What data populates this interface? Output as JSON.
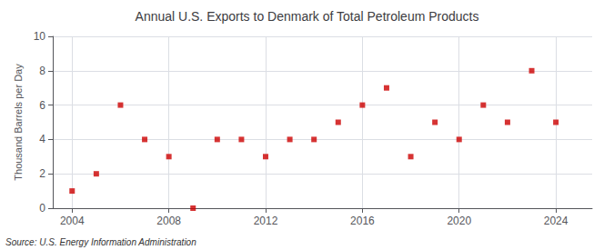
{
  "chart_data": {
    "type": "scatter",
    "title": "Annual U.S. Exports to Denmark of Total Petroleum Products",
    "ylabel": "Thousand Barrels per Day",
    "annotation": "Source: U.S. Energy Information Administration",
    "x": [
      2004,
      2005,
      2006,
      2007,
      2008,
      2009,
      2010,
      2011,
      2012,
      2013,
      2014,
      2015,
      2016,
      2017,
      2018,
      2019,
      2020,
      2021,
      2022,
      2023,
      2024
    ],
    "values": [
      1,
      2,
      6,
      4,
      3,
      0,
      4,
      4,
      3,
      4,
      4,
      5,
      6,
      7,
      3,
      5,
      4,
      6,
      5,
      8,
      5
    ],
    "color": "#cc0000",
    "marker": "square",
    "xlim": [
      2003.2,
      2025.5
    ],
    "xticks": [
      2004,
      2008,
      2012,
      2016,
      2020,
      2024
    ],
    "ylim": [
      0,
      10
    ],
    "yticks": [
      0,
      2,
      4,
      6,
      8,
      10
    ],
    "grid": true
  }
}
